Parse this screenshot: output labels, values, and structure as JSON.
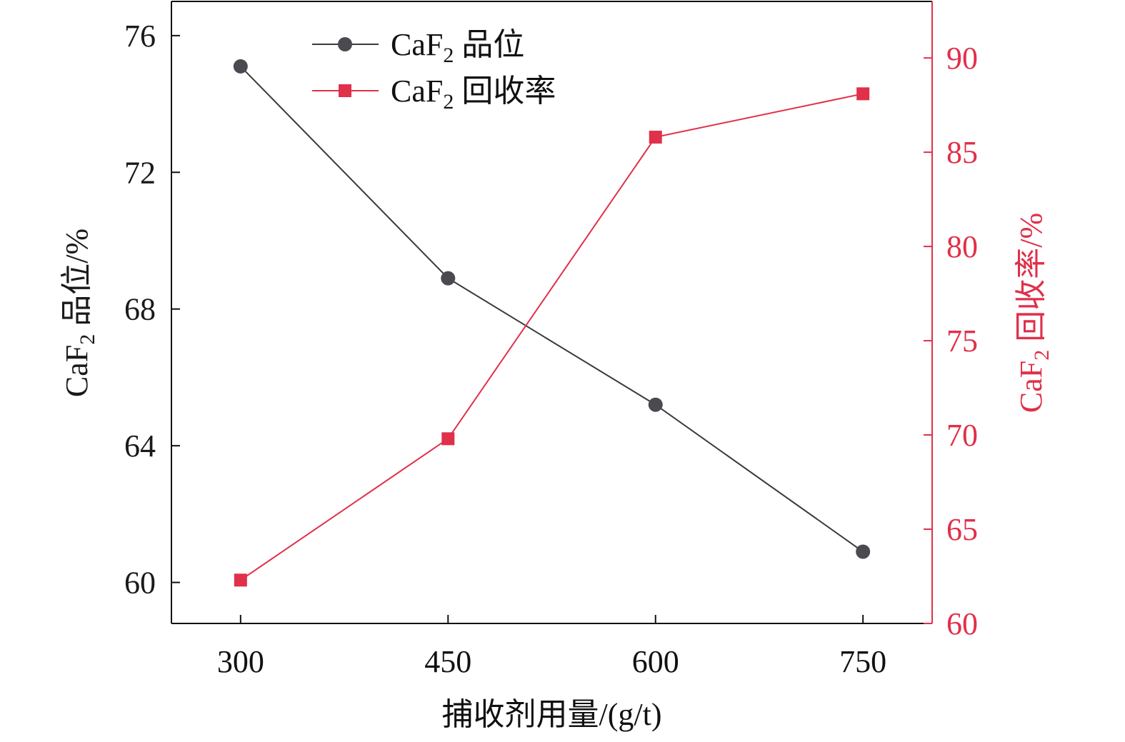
{
  "chart_data": {
    "type": "line",
    "title": "",
    "xlabel": "捕收剂用量/(g/t)",
    "x": [
      300,
      450,
      600,
      750
    ],
    "xlim": [
      250,
      800
    ],
    "x_ticks": [
      "300",
      "450",
      "600",
      "750"
    ],
    "y_left": {
      "label_main": "CaF",
      "label_sub": "2",
      "label_tail": " 品位/%",
      "ylim": [
        58.8,
        77.0
      ],
      "ticks": [
        "60",
        "64",
        "68",
        "72",
        "76"
      ],
      "tick_values": [
        60,
        64,
        68,
        72,
        76
      ],
      "color": "#1a1a1a"
    },
    "y_right": {
      "label_main": "CaF",
      "label_sub": "2",
      "label_tail": " 回收率/%",
      "ylim": [
        60,
        93
      ],
      "ticks": [
        "60",
        "65",
        "70",
        "75",
        "80",
        "85",
        "90"
      ],
      "tick_values": [
        60,
        65,
        70,
        75,
        80,
        85,
        90
      ],
      "color": "#e0304a"
    },
    "series": [
      {
        "name_main": "CaF",
        "name_sub": "2",
        "name_tail": " 品位",
        "axis": "left",
        "marker": "circle",
        "line_color": "#3a3a3a",
        "marker_color": "#4a4a50",
        "values": [
          75.1,
          68.9,
          65.2,
          60.9
        ]
      },
      {
        "name_main": "CaF",
        "name_sub": "2",
        "name_tail": " 回收率",
        "axis": "right",
        "marker": "square",
        "line_color": "#e0304a",
        "marker_color": "#e0304a",
        "values": [
          62.3,
          69.8,
          85.8,
          88.1
        ]
      }
    ],
    "grid": false,
    "legend_position": "top-left"
  }
}
